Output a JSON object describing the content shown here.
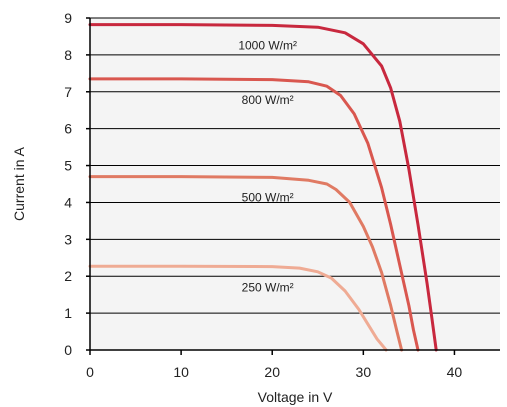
{
  "chart_data": {
    "type": "line",
    "title": "",
    "xlabel": "Voltage in V",
    "ylabel": "Current in A",
    "xlim": [
      0,
      45
    ],
    "ylim": [
      0,
      9
    ],
    "xticks": [
      0,
      10,
      20,
      30,
      40
    ],
    "yticks": [
      0,
      1,
      2,
      3,
      4,
      5,
      6,
      7,
      8,
      9
    ],
    "grid": "horizontal",
    "series": [
      {
        "name": "1000 W/m²",
        "color": "#c8283e",
        "x": [
          0,
          10,
          20,
          25,
          28,
          30,
          32,
          33,
          34,
          35,
          36,
          37,
          37.5,
          38
        ],
        "y": [
          8.82,
          8.82,
          8.8,
          8.75,
          8.6,
          8.3,
          7.7,
          7.1,
          6.2,
          4.9,
          3.4,
          1.8,
          0.9,
          0
        ]
      },
      {
        "name": "800 W/m²",
        "color": "#d9574f",
        "x": [
          0,
          10,
          20,
          24,
          26,
          27.5,
          29,
          30.5,
          32,
          33,
          34,
          35,
          35.5,
          36
        ],
        "y": [
          7.35,
          7.35,
          7.33,
          7.27,
          7.15,
          6.9,
          6.4,
          5.6,
          4.4,
          3.4,
          2.3,
          1.2,
          0.55,
          0
        ]
      },
      {
        "name": "500 W/m²",
        "color": "#e07a63",
        "x": [
          0,
          10,
          20,
          24,
          26,
          27,
          28.5,
          30,
          31,
          32,
          33,
          33.7,
          34.2
        ],
        "y": [
          4.7,
          4.7,
          4.68,
          4.6,
          4.5,
          4.35,
          4.0,
          3.35,
          2.8,
          2.1,
          1.2,
          0.5,
          0
        ]
      },
      {
        "name": "250 W/m²",
        "color": "#efab94",
        "x": [
          0,
          10,
          20,
          23,
          25,
          26.5,
          28,
          29.5,
          30.5,
          31.5,
          32.5
        ],
        "y": [
          2.27,
          2.27,
          2.26,
          2.22,
          2.12,
          1.95,
          1.6,
          1.1,
          0.7,
          0.3,
          0
        ]
      }
    ]
  }
}
